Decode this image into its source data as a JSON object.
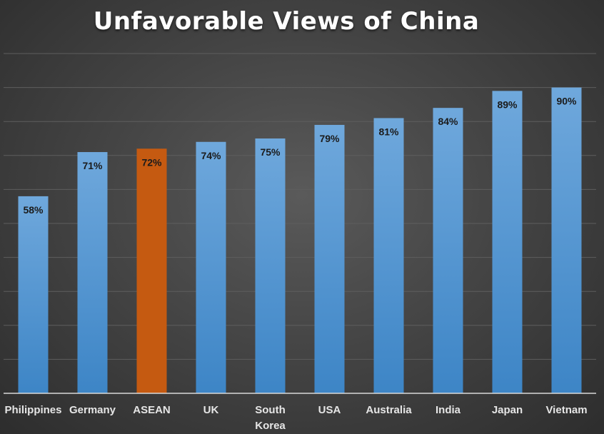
{
  "chart_data": {
    "type": "bar",
    "title": "Unfavorable Views of China",
    "categories": [
      "Philippines",
      "Germany",
      "ASEAN",
      "UK",
      "South Korea",
      "USA",
      "Australia",
      "India",
      "Japan",
      "Vietnam"
    ],
    "category_lines": [
      [
        "Philippines"
      ],
      [
        "Germany"
      ],
      [
        "ASEAN"
      ],
      [
        "UK"
      ],
      [
        "South",
        "Korea"
      ],
      [
        "USA"
      ],
      [
        "Australia"
      ],
      [
        "India"
      ],
      [
        "Japan"
      ],
      [
        "Vietnam"
      ]
    ],
    "values": [
      58,
      71,
      72,
      74,
      75,
      79,
      81,
      84,
      89,
      90
    ],
    "data_labels": [
      "58%",
      "71%",
      "72%",
      "74%",
      "75%",
      "79%",
      "81%",
      "84%",
      "89%",
      "90%"
    ],
    "highlight_category": "ASEAN",
    "ylim": [
      0,
      100
    ],
    "grid": true,
    "legend": "none",
    "colors": {
      "bar": "#5b9bd5",
      "highlight": "#c55a11",
      "background": "#404040",
      "gridline": "#5e5e5e",
      "axis": "#d9d9d9",
      "label_text": "#1b1b1b",
      "category_text": "#e6e6e6",
      "title_text": "#ffffff"
    }
  }
}
